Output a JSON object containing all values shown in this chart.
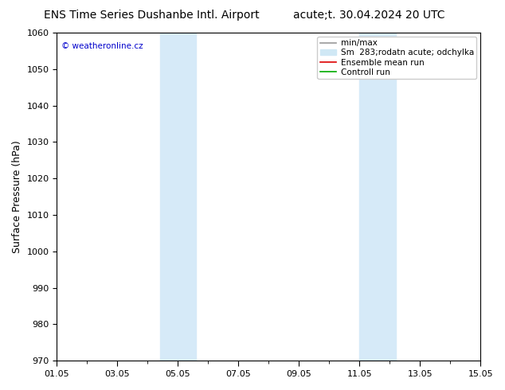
{
  "title_left": "ENS Time Series Dushanbe Intl. Airport",
  "title_right": "acute;t. 30.04.2024 20 UTC",
  "ylabel": "Surface Pressure (hPa)",
  "ylim": [
    970,
    1060
  ],
  "yticks": [
    970,
    980,
    990,
    1000,
    1010,
    1020,
    1030,
    1040,
    1050,
    1060
  ],
  "xlim": [
    0,
    14
  ],
  "xtick_labels": [
    "01.05",
    "03.05",
    "05.05",
    "07.05",
    "09.05",
    "11.05",
    "13.05",
    "15.05"
  ],
  "xtick_positions": [
    0,
    2,
    4,
    6,
    8,
    10,
    12,
    14
  ],
  "shaded_regions": [
    {
      "xstart": 3.4,
      "xend": 4.6,
      "color": "#d6eaf8"
    },
    {
      "xstart": 10.0,
      "xend": 11.2,
      "color": "#d6eaf8"
    }
  ],
  "copyright_text": "© weatheronline.cz",
  "copyright_color": "#0000cc",
  "legend_entries": [
    {
      "label": "min/max",
      "color": "#999999",
      "lw": 1.2,
      "type": "line"
    },
    {
      "label": "Sm  283;rodatn acute; odchylka",
      "color": "#d0e8f5",
      "lw": 6,
      "type": "patch"
    },
    {
      "label": "Ensemble mean run",
      "color": "#dd0000",
      "lw": 1.2,
      "type": "line"
    },
    {
      "label": "Controll run",
      "color": "#00aa00",
      "lw": 1.2,
      "type": "line"
    }
  ],
  "background_color": "#ffffff",
  "plot_bg_color": "#ffffff",
  "title_fontsize": 10,
  "axis_label_fontsize": 9,
  "tick_fontsize": 8,
  "legend_fontsize": 7.5
}
